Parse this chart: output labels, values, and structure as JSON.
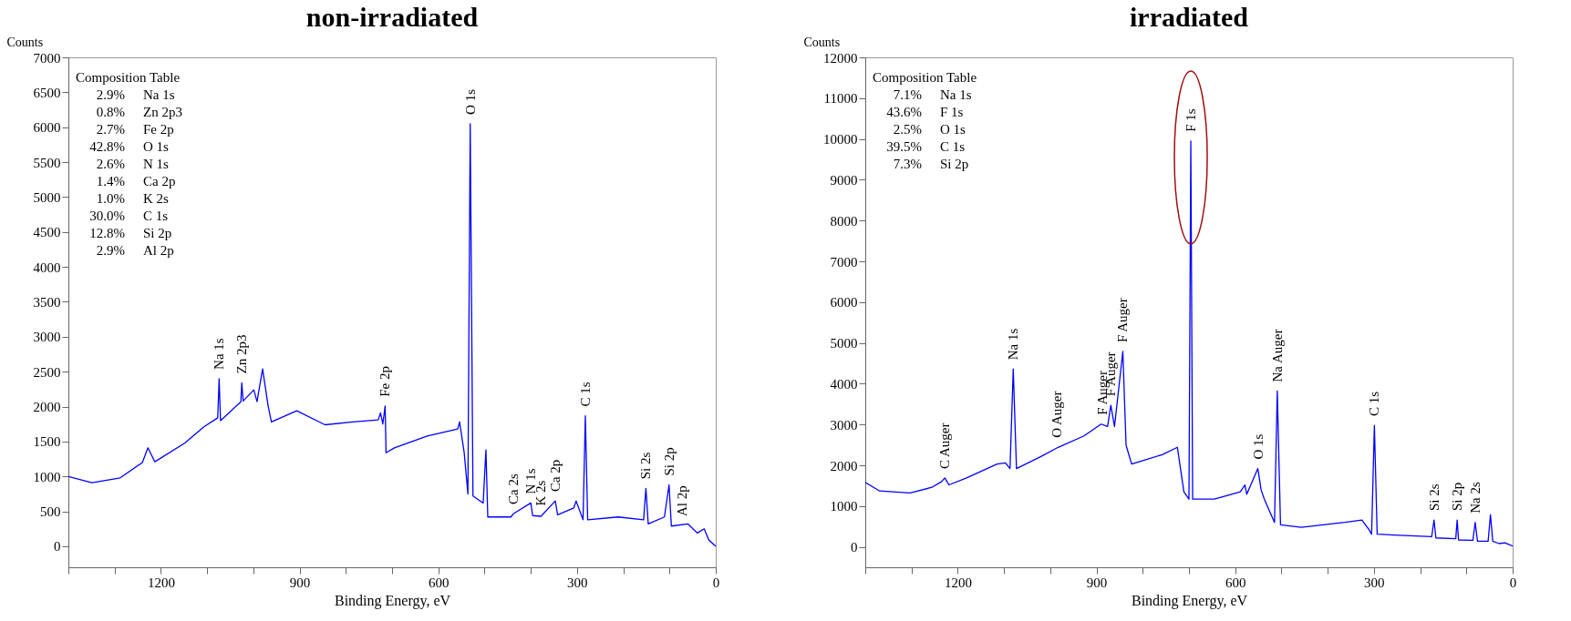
{
  "chart_data": [
    {
      "type": "line",
      "title": "non-irradiated",
      "xlabel": "Binding Energy, eV",
      "ylabel": "Counts",
      "xlim": [
        1400,
        0
      ],
      "xticks": [
        {
          "value": 1400,
          "label": null
        },
        {
          "value": 1300,
          "label": null
        },
        1200,
        {
          "value": 1100,
          "label": null
        },
        {
          "value": 1000,
          "label": null
        },
        900,
        {
          "value": 800,
          "label": null
        },
        {
          "value": 700,
          "label": null
        },
        600,
        {
          "value": 500,
          "label": null
        },
        {
          "value": 400,
          "label": null
        },
        300,
        {
          "value": 200,
          "label": null
        },
        {
          "value": 100,
          "label": null
        },
        0
      ],
      "ylim": [
        -300,
        7000
      ],
      "yticks": [
        0,
        500,
        1000,
        1500,
        2000,
        2500,
        3000,
        3500,
        4000,
        4500,
        5000,
        5500,
        6000,
        6500,
        7000
      ],
      "series": [
        {
          "color": "#0000ff",
          "x": [
            1400,
            1349,
            1288,
            1240,
            1228,
            1213,
            1148,
            1107,
            1077,
            1074,
            1071,
            1027,
            1025,
            1022,
            999,
            992,
            980,
            968,
            961,
            906,
            845,
            785,
            730,
            725,
            720,
            715,
            713,
            695,
            624,
            558,
            554,
            544,
            536,
            531,
            525,
            503,
            497,
            493,
            443,
            437,
            400,
            396,
            378,
            347,
            342,
            307,
            302,
            287,
            282,
            277,
            211,
            156,
            151,
            146,
            111,
            101,
            96,
            60,
            40,
            25,
            15,
            0
          ],
          "values": [
            1000,
            910,
            980,
            1200,
            1410,
            1210,
            1480,
            1710,
            1840,
            2400,
            1800,
            2070,
            2340,
            2080,
            2240,
            2070,
            2540,
            2010,
            1780,
            1940,
            1740,
            1780,
            1810,
            1910,
            1750,
            2010,
            1340,
            1410,
            1580,
            1680,
            1780,
            1340,
            750,
            6050,
            720,
            620,
            1380,
            420,
            420,
            470,
            620,
            440,
            430,
            650,
            450,
            550,
            650,
            380,
            1870,
            380,
            420,
            380,
            830,
            320,
            420,
            880,
            290,
            320,
            190,
            250,
            90,
            0
          ]
        }
      ],
      "annotations": [
        "Composition Table",
        "2.9% Na 1s",
        "0.8% Zn 2p3",
        "2.7% Fe 2p",
        "42.8% O 1s",
        "2.6% N 1s",
        "1.4% Ca 2p",
        "1.0% K 2s",
        "30.0% C 1s",
        "12.8% Si 2p",
        "2.9% Al 2p",
        {
          "text": "Na 1s",
          "x": 1074,
          "y": 2400
        },
        {
          "text": "Zn 2p3",
          "x": 1025,
          "y": 2340
        },
        {
          "text": "Fe 2p",
          "x": 715,
          "y": 2010
        },
        {
          "text": "O 1s",
          "x": 531,
          "y": 6050
        },
        {
          "text": "Ca 2s",
          "x": 437,
          "y": 470
        },
        {
          "text": "N 1s",
          "x": 400,
          "y": 620
        },
        {
          "text": "K 2s",
          "x": 378,
          "y": 450
        },
        {
          "text": "Ca 2p",
          "x": 347,
          "y": 650
        },
        {
          "text": "C 1s",
          "x": 282,
          "y": 1870
        },
        {
          "text": "Si 2s",
          "x": 151,
          "y": 830
        },
        {
          "text": "Si 2p",
          "x": 101,
          "y": 880
        },
        {
          "text": "Al 2p",
          "x": 72,
          "y": 300
        }
      ]
    },
    {
      "type": "line",
      "title": "irradiated",
      "xlabel": "Binding Energy, eV",
      "ylabel": "Counts",
      "xlim": [
        1400,
        0
      ],
      "xticks": [
        {
          "value": 1400,
          "label": null
        },
        {
          "value": 1300,
          "label": null
        },
        1200,
        {
          "value": 1100,
          "label": null
        },
        {
          "value": 1000,
          "label": null
        },
        900,
        {
          "value": 800,
          "label": null
        },
        {
          "value": 700,
          "label": null
        },
        600,
        {
          "value": 500,
          "label": null
        },
        {
          "value": 400,
          "label": null
        },
        300,
        {
          "value": 200,
          "label": null
        },
        {
          "value": 100,
          "label": null
        },
        0
      ],
      "ylim": [
        -500,
        12000
      ],
      "yticks": [
        0,
        1000,
        2000,
        3000,
        4000,
        5000,
        6000,
        7000,
        8000,
        9000,
        10000,
        11000,
        12000
      ],
      "series": [
        {
          "color": "#0000ff",
          "x": [
            1400,
            1369,
            1303,
            1256,
            1235,
            1228,
            1219,
            1181,
            1115,
            1097,
            1087,
            1080,
            1073,
            1021,
            983,
            927,
            890,
            876,
            869,
            861,
            843,
            836,
            824,
            758,
            725,
            711,
            700,
            696,
            692,
            645,
            589,
            579,
            575,
            551,
            544,
            537,
            515,
            509,
            502,
            457,
            363,
            326,
            311,
            305,
            299,
            293,
            175,
            170,
            166,
            123,
            120,
            117,
            86,
            81,
            76,
            53,
            48,
            43,
            29,
            17,
            0
          ],
          "values": [
            1580,
            1370,
            1320,
            1460,
            1600,
            1690,
            1520,
            1690,
            2030,
            2060,
            1920,
            4360,
            1920,
            2210,
            2440,
            2720,
            3010,
            2950,
            3470,
            2950,
            4790,
            2490,
            2030,
            2260,
            2440,
            1350,
            1170,
            9950,
            1170,
            1170,
            1350,
            1520,
            1290,
            1920,
            1400,
            1170,
            600,
            3820,
            540,
            480,
            600,
            660,
            430,
            310,
            2980,
            310,
            250,
            660,
            220,
            200,
            660,
            170,
            160,
            600,
            140,
            140,
            790,
            140,
            80,
            100,
            20
          ]
        }
      ],
      "annotations": [
        "Composition Table",
        "7.1% Na 1s",
        "43.6% F 1s",
        "2.5% O 1s",
        "39.5% C 1s",
        "7.3% Si 2p",
        {
          "text": "C Auger",
          "x": 1228,
          "y": 1690
        },
        {
          "text": "Na 1s",
          "x": 1080,
          "y": 4360
        },
        {
          "text": "O Auger",
          "x": 985,
          "y": 2450
        },
        {
          "text": "F Auger",
          "x": 888,
          "y": 3010
        },
        {
          "text": "F Auger",
          "x": 869,
          "y": 3470
        },
        {
          "text": "F Auger",
          "x": 843,
          "y": 4790
        },
        {
          "text": "F 1s",
          "x": 696,
          "y": 9950
        },
        {
          "text": "O 1s",
          "x": 551,
          "y": 1920
        },
        {
          "text": "Na Auger",
          "x": 509,
          "y": 3820
        },
        {
          "text": "C 1s",
          "x": 299,
          "y": 2980
        },
        {
          "text": "Si 2s",
          "x": 170,
          "y": 660
        },
        {
          "text": "Si 2p",
          "x": 120,
          "y": 660
        },
        {
          "text": "Na 2s",
          "x": 81,
          "y": 600
        }
      ]
    }
  ]
}
